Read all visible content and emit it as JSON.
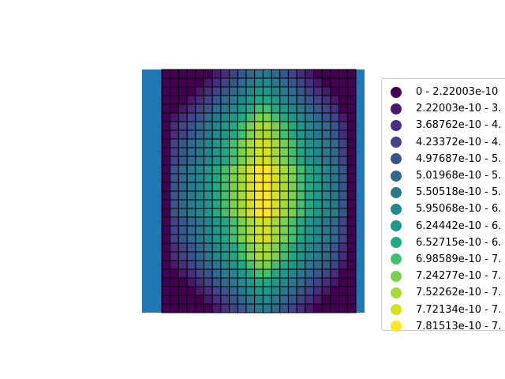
{
  "chart_data": {
    "type": "heatmap",
    "title": "",
    "xlabel": "",
    "ylabel": "",
    "axes_visible": false,
    "legend_position": "right, clipped at figure edge",
    "background_polygon_color": "#1f77b4",
    "cell_edge_color": "#000000",
    "grid": {
      "columns": 23,
      "rows": 28
    },
    "legend": [
      {
        "label": "0 - 2.22003e-10",
        "color": "#440154"
      },
      {
        "label": "2.22003e-10 - 3.",
        "color": "#481a6c"
      },
      {
        "label": "3.68762e-10 - 4.",
        "color": "#472f7d"
      },
      {
        "label": "4.23372e-10 - 4.",
        "color": "#414487"
      },
      {
        "label": "4.97687e-10 - 5.",
        "color": "#39568c"
      },
      {
        "label": "5.01968e-10 - 5.",
        "color": "#31688e"
      },
      {
        "label": "5.50518e-10 - 5.",
        "color": "#2a788e"
      },
      {
        "label": "5.95068e-10 - 6.",
        "color": "#23888e"
      },
      {
        "label": "6.24442e-10 - 6.",
        "color": "#1f988b"
      },
      {
        "label": "6.52715e-10 - 6.",
        "color": "#22a884"
      },
      {
        "label": "6.98589e-10 - 7.",
        "color": "#44bf70"
      },
      {
        "label": "7.24277e-10 - 7.",
        "color": "#7ad151"
      },
      {
        "label": "7.52262e-10 - 7.",
        "color": "#a5db36"
      },
      {
        "label": "7.72134e-10 - 7.",
        "color": "#d2e21b"
      },
      {
        "label": "7.81513e-10 - 7.",
        "color": "#fde725"
      }
    ],
    "column_class_profile": [
      0,
      2,
      3,
      4,
      5,
      6,
      7,
      8,
      9,
      10,
      11,
      12,
      12,
      11,
      10,
      9,
      8,
      7,
      6,
      5,
      4,
      2,
      0
    ],
    "row_class_offset": [
      -6,
      -5,
      -4,
      -3,
      -2,
      -1,
      0,
      0,
      1,
      1,
      1,
      2,
      2,
      2,
      2,
      2,
      2,
      1,
      1,
      1,
      0,
      0,
      -1,
      -2,
      -3,
      -4,
      -5,
      -6
    ]
  }
}
